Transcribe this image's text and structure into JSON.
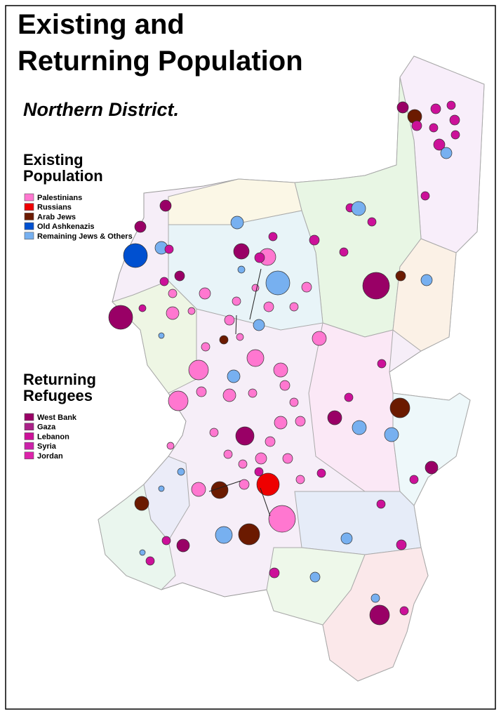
{
  "title": [
    "Existing and",
    "Returning Population"
  ],
  "subtitle": "Northern District.",
  "legends": [
    {
      "heading": [
        "Existing",
        "Population"
      ],
      "items": [
        {
          "label": "Palestinians",
          "color": "#ff77d0"
        },
        {
          "label": "Russians",
          "color": "#ee0000"
        },
        {
          "label": "Arab Jews",
          "color": "#6b1a00"
        },
        {
          "label": "Old Ashkenazis",
          "color": "#0050d0"
        },
        {
          "label": "Remaining Jews & Others",
          "color": "#77b0f0"
        }
      ]
    },
    {
      "heading": [
        "Returning",
        "Refugees"
      ],
      "items": [
        {
          "label": "West Bank",
          "color": "#990066"
        },
        {
          "label": "Gaza",
          "color": "#aa2288"
        },
        {
          "label": "Lebanon",
          "color": "#cc1199"
        },
        {
          "label": "Syria",
          "color": "#cc22aa"
        },
        {
          "label": "Jordan",
          "color": "#dd22aa"
        }
      ]
    }
  ]
}
